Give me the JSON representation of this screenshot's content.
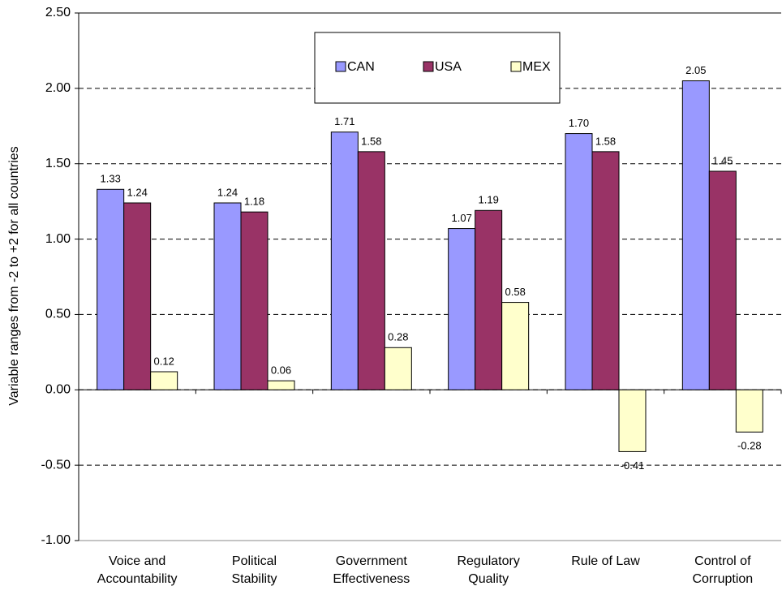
{
  "chart_data": {
    "type": "bar",
    "y_label": "Variable ranges from -2 to +2 for all countries",
    "categories": [
      "Voice and\nAccountability",
      "Political\nStability",
      "Government\nEffectiveness",
      "Regulatory\nQuality",
      "Rule of Law",
      "Control of\nCorruption"
    ],
    "series": [
      {
        "name": "CAN",
        "color": "#9999ff",
        "values": [
          1.33,
          1.24,
          1.71,
          1.07,
          1.7,
          2.05
        ],
        "value_labels": [
          "1.33",
          "1.24",
          "1.71",
          "1.07",
          "1.70",
          "2.05"
        ]
      },
      {
        "name": "USA",
        "color": "#993366",
        "values": [
          1.24,
          1.18,
          1.58,
          1.19,
          1.58,
          1.45
        ],
        "value_labels": [
          "1.24",
          "1.18",
          "1.58",
          "1.19",
          "1.58",
          "1.45"
        ]
      },
      {
        "name": "MEX",
        "color": "#ffffcc",
        "values": [
          0.12,
          0.06,
          0.28,
          0.58,
          -0.41,
          -0.28
        ],
        "value_labels": [
          "0.12",
          "0.06",
          "0.28",
          "0.58",
          "-0.41",
          "-0.28"
        ]
      }
    ],
    "ylim": [
      -1,
      2.5
    ],
    "yticks": [
      {
        "value": -1,
        "label": "-1.00"
      },
      {
        "value": -0.5,
        "label": "-0.50"
      },
      {
        "value": 0,
        "label": "0.00"
      },
      {
        "value": 0.5,
        "label": "0.50"
      },
      {
        "value": 1,
        "label": "1.00"
      },
      {
        "value": 1.5,
        "label": "1.50"
      },
      {
        "value": 2,
        "label": "2.00"
      },
      {
        "value": 2.5,
        "label": "2.50"
      }
    ],
    "grid": true,
    "legend": "top"
  }
}
